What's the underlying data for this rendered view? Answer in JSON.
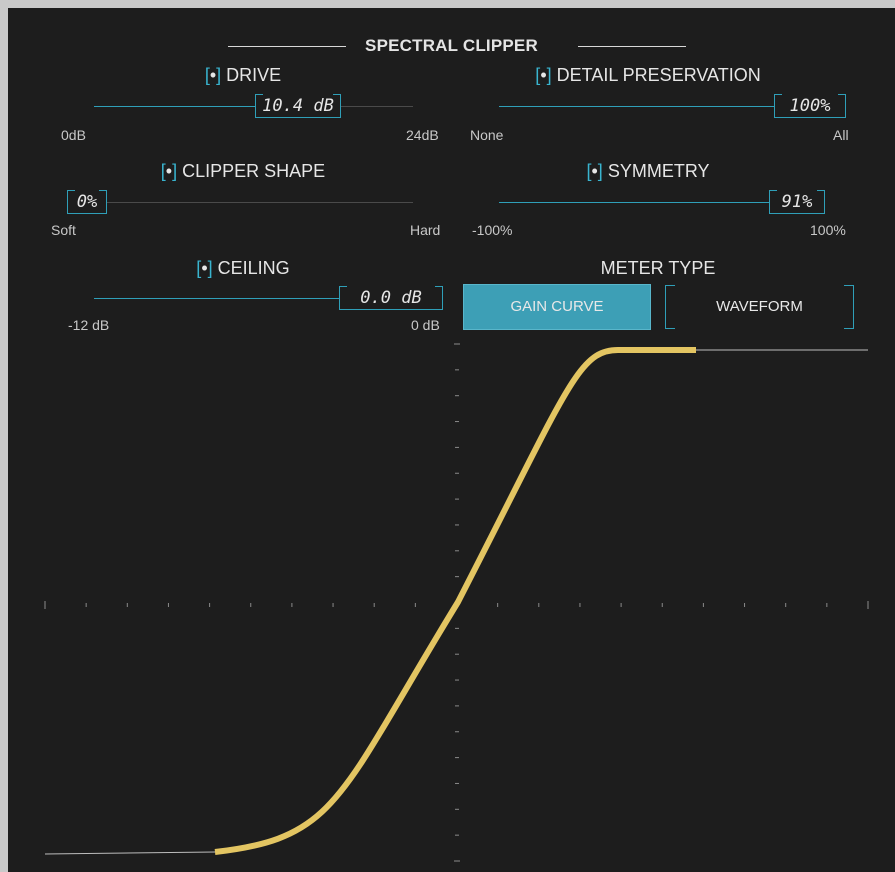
{
  "header": {
    "title": "SPECTRAL CLIPPER"
  },
  "params": {
    "drive": {
      "label": "DRIVE",
      "value": "10.4 dB",
      "min": "0dB",
      "max": "24dB"
    },
    "detail": {
      "label": "DETAIL PRESERVATION",
      "value": "100%",
      "min": "None",
      "max": "All"
    },
    "shape": {
      "label": "CLIPPER SHAPE",
      "value": "0%",
      "min": "Soft",
      "max": "Hard"
    },
    "symmetry": {
      "label": "SYMMETRY",
      "value": "91%",
      "min": "-100%",
      "max": "100%"
    },
    "ceiling": {
      "label": "CEILING",
      "value": "0.0 dB",
      "min": "-12 dB",
      "max": "0 dB"
    }
  },
  "meter": {
    "label": "METER TYPE",
    "options": [
      "GAIN CURVE",
      "WAVEFORM"
    ],
    "selected": "GAIN CURVE"
  },
  "toggle_icon": "bracket-dot-icon",
  "colors": {
    "accent": "#2f9fb8",
    "curve": "#e3c562",
    "active_button": "#3d9fb6"
  }
}
